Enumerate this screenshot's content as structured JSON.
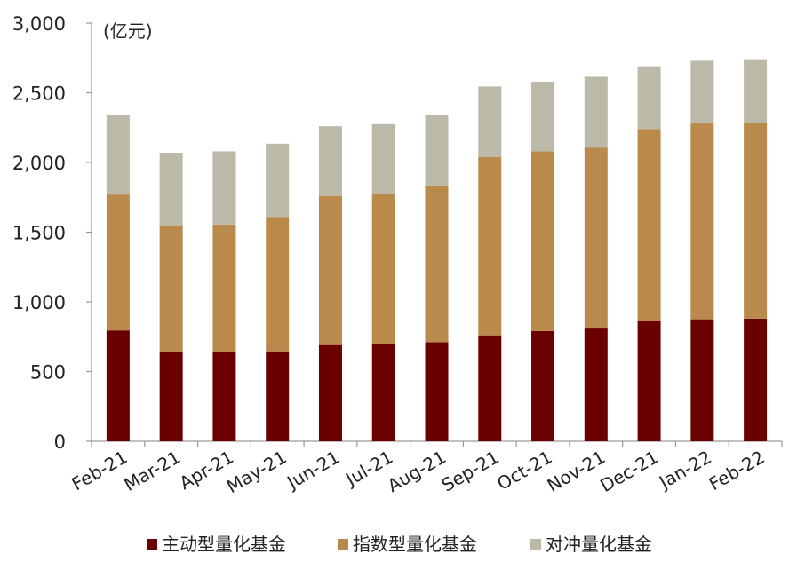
{
  "chart_data": {
    "type": "bar",
    "stacked": true,
    "unit_label": "(亿元)",
    "categories": [
      "Feb-21",
      "Mar-21",
      "Apr-21",
      "May-21",
      "Jun-21",
      "Jul-21",
      "Aug-21",
      "Sep-21",
      "Oct-21",
      "Nov-21",
      "Dec-21",
      "Jan-22",
      "Feb-22"
    ],
    "series": [
      {
        "name": "主动型量化基金",
        "color": "#6b0000",
        "values": [
          795,
          640,
          640,
          645,
          690,
          700,
          710,
          760,
          790,
          815,
          860,
          875,
          880
        ]
      },
      {
        "name": "指数型量化基金",
        "color": "#b98a4c",
        "values": [
          975,
          910,
          915,
          965,
          1070,
          1075,
          1125,
          1280,
          1290,
          1290,
          1380,
          1405,
          1405
        ]
      },
      {
        "name": "对冲量化基金",
        "color": "#bcb9a8",
        "values": [
          570,
          520,
          525,
          525,
          500,
          500,
          505,
          505,
          500,
          510,
          450,
          450,
          450
        ]
      }
    ],
    "y_ticks": [
      "0",
      "500",
      "1,000",
      "1,500",
      "2,000",
      "2,500",
      "3,000"
    ],
    "ylim": [
      0,
      3000
    ],
    "grid": false,
    "legend_position": "bottom"
  }
}
